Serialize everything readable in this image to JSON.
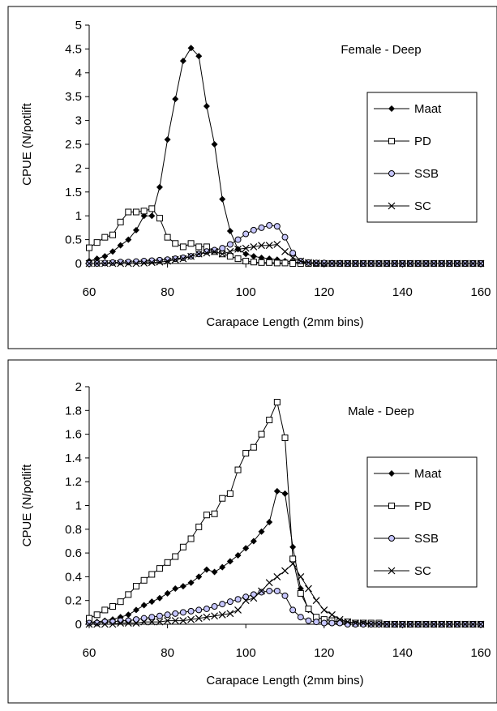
{
  "chart_data": [
    {
      "type": "line",
      "title": "Female - Deep",
      "xlabel": "Carapace Length (2mm bins)",
      "ylabel": "CPUE (N/potlift",
      "xlim": [
        60,
        160
      ],
      "ylim": [
        0,
        5
      ],
      "xticks": [
        "60",
        "80",
        "100",
        "120",
        "140",
        "160"
      ],
      "yticks": [
        "0",
        "0.5",
        "1",
        "1.5",
        "2",
        "2.5",
        "3",
        "3.5",
        "4",
        "4.5",
        "5"
      ],
      "grid": false,
      "legend_position": "right",
      "x": [
        60,
        62,
        64,
        66,
        68,
        70,
        72,
        74,
        76,
        78,
        80,
        82,
        84,
        86,
        88,
        90,
        92,
        94,
        96,
        98,
        100,
        102,
        104,
        106,
        108,
        110,
        112,
        114,
        116,
        118,
        120,
        122,
        124,
        126,
        128,
        130,
        132,
        134,
        136,
        138,
        140,
        142,
        144,
        146,
        148,
        150,
        152,
        154,
        156,
        158,
        160
      ],
      "series": [
        {
          "name": "Maat",
          "marker": "diamond",
          "values": [
            0.05,
            0.1,
            0.15,
            0.25,
            0.38,
            0.5,
            0.7,
            1.0,
            1.0,
            1.6,
            2.6,
            3.45,
            4.25,
            4.52,
            4.35,
            3.3,
            2.5,
            1.35,
            0.68,
            0.3,
            0.2,
            0.15,
            0.12,
            0.1,
            0.08,
            0.05,
            0.03,
            0.02,
            0.01,
            0.01,
            0.01,
            0.01,
            0.01,
            0,
            0,
            0,
            0,
            0,
            0,
            0,
            0,
            0,
            0,
            0,
            0,
            0,
            0,
            0,
            0,
            0,
            0
          ]
        },
        {
          "name": "PD",
          "marker": "square",
          "values": [
            0.33,
            0.44,
            0.55,
            0.6,
            0.87,
            1.08,
            1.08,
            1.1,
            1.15,
            0.95,
            0.55,
            0.42,
            0.35,
            0.42,
            0.35,
            0.35,
            0.25,
            0.2,
            0.15,
            0.1,
            0.05,
            0.03,
            0.02,
            0.02,
            0.01,
            0.01,
            0,
            0,
            0,
            0,
            0,
            0,
            0,
            0,
            0,
            0,
            0,
            0,
            0,
            0,
            0,
            0,
            0,
            0,
            0,
            0,
            0,
            0,
            0,
            0,
            0
          ]
        },
        {
          "name": "SSB",
          "marker": "circle",
          "values": [
            0,
            0,
            0.01,
            0.02,
            0.03,
            0.03,
            0.04,
            0.05,
            0.06,
            0.07,
            0.08,
            0.1,
            0.12,
            0.15,
            0.2,
            0.25,
            0.28,
            0.32,
            0.4,
            0.5,
            0.62,
            0.7,
            0.75,
            0.8,
            0.78,
            0.55,
            0.22,
            0.05,
            0.02,
            0.01,
            0.01,
            0,
            0,
            0,
            0,
            0,
            0,
            0,
            0,
            0,
            0,
            0,
            0,
            0,
            0,
            0,
            0,
            0,
            0,
            0,
            0
          ]
        },
        {
          "name": "SC",
          "marker": "x",
          "values": [
            0,
            0,
            0,
            0,
            0,
            0,
            0,
            0.01,
            0.02,
            0.03,
            0.05,
            0.08,
            0.1,
            0.15,
            0.2,
            0.22,
            0.25,
            0.2,
            0.25,
            0.3,
            0.32,
            0.35,
            0.38,
            0.38,
            0.4,
            0.25,
            0.12,
            0.05,
            0.02,
            0.01,
            0,
            0,
            0,
            0,
            0,
            0,
            0,
            0,
            0,
            0,
            0,
            0,
            0,
            0,
            0,
            0,
            0,
            0,
            0,
            0,
            0
          ]
        }
      ]
    },
    {
      "type": "line",
      "title": "Male - Deep",
      "xlabel": "Carapace Length (2mm bins)",
      "ylabel": "CPUE (N/potlift",
      "xlim": [
        60,
        160
      ],
      "ylim": [
        0,
        2
      ],
      "xticks": [
        "60",
        "80",
        "100",
        "120",
        "140",
        "160"
      ],
      "yticks": [
        "0",
        "0.2",
        "0.4",
        "0.6",
        "0.8",
        "1",
        "1.2",
        "1.4",
        "1.6",
        "1.8",
        "2"
      ],
      "grid": false,
      "legend_position": "right",
      "x": [
        60,
        62,
        64,
        66,
        68,
        70,
        72,
        74,
        76,
        78,
        80,
        82,
        84,
        86,
        88,
        90,
        92,
        94,
        96,
        98,
        100,
        102,
        104,
        106,
        108,
        110,
        112,
        114,
        116,
        118,
        120,
        122,
        124,
        126,
        128,
        130,
        132,
        134,
        136,
        138,
        140,
        142,
        144,
        146,
        148,
        150,
        152,
        154,
        156,
        158,
        160
      ],
      "series": [
        {
          "name": "Maat",
          "marker": "diamond",
          "values": [
            0.01,
            0.02,
            0.03,
            0.04,
            0.06,
            0.08,
            0.12,
            0.16,
            0.19,
            0.22,
            0.26,
            0.3,
            0.32,
            0.35,
            0.4,
            0.46,
            0.44,
            0.48,
            0.53,
            0.58,
            0.64,
            0.7,
            0.78,
            0.86,
            1.12,
            1.1,
            0.65,
            0.3,
            0.12,
            0.06,
            0.04,
            0.03,
            0.02,
            0.02,
            0.01,
            0.01,
            0.01,
            0.01,
            0,
            0,
            0,
            0,
            0,
            0,
            0,
            0,
            0,
            0,
            0,
            0,
            0
          ]
        },
        {
          "name": "PD",
          "marker": "square",
          "values": [
            0.05,
            0.08,
            0.12,
            0.15,
            0.19,
            0.25,
            0.32,
            0.37,
            0.42,
            0.47,
            0.52,
            0.57,
            0.65,
            0.72,
            0.82,
            0.92,
            0.93,
            1.06,
            1.1,
            1.3,
            1.44,
            1.49,
            1.6,
            1.72,
            1.87,
            1.57,
            0.55,
            0.26,
            0.13,
            0.06,
            0.04,
            0.03,
            0.02,
            0.02,
            0.01,
            0.01,
            0.01,
            0.01,
            0,
            0,
            0,
            0,
            0,
            0,
            0,
            0,
            0,
            0,
            0,
            0,
            0
          ]
        },
        {
          "name": "SSB",
          "marker": "circle",
          "values": [
            0.01,
            0.01,
            0.02,
            0.02,
            0.03,
            0.03,
            0.04,
            0.05,
            0.06,
            0.07,
            0.08,
            0.09,
            0.1,
            0.11,
            0.12,
            0.13,
            0.15,
            0.17,
            0.19,
            0.21,
            0.23,
            0.25,
            0.27,
            0.28,
            0.28,
            0.24,
            0.12,
            0.06,
            0.03,
            0.02,
            0.01,
            0.01,
            0.01,
            0,
            0,
            0,
            0,
            0,
            0,
            0,
            0,
            0,
            0,
            0,
            0,
            0,
            0,
            0,
            0,
            0,
            0
          ]
        },
        {
          "name": "SC",
          "marker": "x",
          "values": [
            0,
            0,
            0,
            0,
            0.01,
            0.01,
            0.01,
            0.02,
            0.02,
            0.02,
            0.03,
            0.03,
            0.03,
            0.04,
            0.05,
            0.06,
            0.07,
            0.08,
            0.09,
            0.12,
            0.2,
            0.22,
            0.28,
            0.35,
            0.4,
            0.45,
            0.51,
            0.4,
            0.3,
            0.2,
            0.12,
            0.08,
            0.04,
            0.02,
            0.01,
            0.01,
            0,
            0,
            0,
            0,
            0,
            0,
            0,
            0,
            0,
            0,
            0,
            0,
            0,
            0,
            0
          ]
        }
      ]
    }
  ]
}
